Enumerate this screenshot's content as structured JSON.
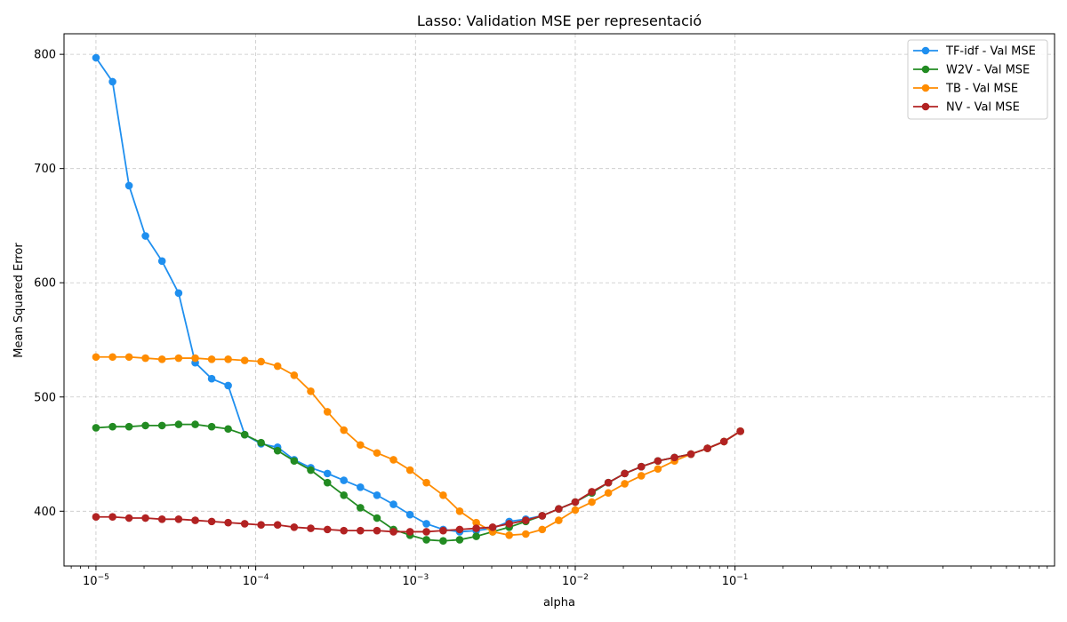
{
  "chart_data": {
    "type": "line",
    "title": "Lasso: Validation MSE per representació",
    "xlabel": "alpha",
    "ylabel": "Mean Squared Error",
    "xscale": "log",
    "xlim_exp": [
      -5.2,
      1.0
    ],
    "xlim": [
      6.31e-06,
      0.119
    ],
    "ylim": [
      352,
      818
    ],
    "yticks": [
      400,
      500,
      600,
      700,
      800
    ],
    "xticks": [
      {
        "value": 1e-05,
        "label_base": "10",
        "label_exp": "−5"
      },
      {
        "value": 0.0001,
        "label_base": "10",
        "label_exp": "−4"
      },
      {
        "value": 0.001,
        "label_base": "10",
        "label_exp": "−3"
      },
      {
        "value": 0.01,
        "label_base": "10",
        "label_exp": "−2"
      },
      {
        "value": 0.1,
        "label_base": "10",
        "label_exp": "−1"
      }
    ],
    "grid": true,
    "legend_position": "top-right",
    "x": [
      1e-05,
      1.27e-05,
      1.61e-05,
      2.04e-05,
      2.59e-05,
      3.29e-05,
      4.18e-05,
      5.3e-05,
      6.72e-05,
      8.53e-05,
      0.000108,
      0.000137,
      0.000174,
      0.000221,
      0.000281,
      0.000356,
      0.000452,
      0.000574,
      0.000728,
      0.000924,
      0.00117,
      0.00149,
      0.00189,
      0.0024,
      0.00304,
      0.00386,
      0.0049,
      0.00621,
      0.00788,
      0.01,
      0.0127,
      0.0161,
      0.0204,
      0.0259,
      0.0329,
      0.0418,
      0.053,
      0.0672,
      0.0853,
      0.108
    ],
    "series": [
      {
        "name": "TF-idf - Val MSE",
        "color": "#1f8fef",
        "values": [
          797,
          776,
          685,
          641,
          619,
          591,
          530,
          516,
          510,
          467,
          459,
          456,
          445,
          438,
          433,
          427,
          421,
          414,
          406,
          397,
          389,
          384,
          382,
          383,
          385,
          391,
          393,
          396,
          402,
          408,
          416,
          425,
          433,
          439,
          444,
          447,
          450,
          455,
          461,
          470
        ]
      },
      {
        "name": "W2V - Val MSE",
        "color": "#228b22",
        "values": [
          473,
          474,
          474,
          475,
          475,
          476,
          476,
          474,
          472,
          467,
          460,
          453,
          444,
          436,
          425,
          414,
          403,
          394,
          384,
          379,
          375,
          374,
          375,
          378,
          382,
          386,
          391,
          396,
          402,
          408,
          416,
          425,
          433,
          439,
          444,
          447,
          450,
          455,
          461,
          470
        ]
      },
      {
        "name": "TB - Val MSE",
        "color": "#ff8c00",
        "values": [
          535,
          535,
          535,
          534,
          533,
          534,
          534,
          533,
          533,
          532,
          531,
          527,
          519,
          505,
          487,
          471,
          458,
          451,
          445,
          436,
          425,
          414,
          400,
          390,
          382,
          379,
          380,
          384,
          392,
          401,
          408,
          416,
          424,
          431,
          437,
          444,
          450,
          455,
          461,
          470
        ]
      },
      {
        "name": "NV - Val MSE",
        "color": "#b22222",
        "values": [
          395,
          395,
          394,
          394,
          393,
          393,
          392,
          391,
          390,
          389,
          388,
          388,
          386,
          385,
          384,
          383,
          383,
          383,
          382,
          382,
          382,
          383,
          384,
          385,
          386,
          389,
          392,
          396,
          402,
          408,
          417,
          425,
          433,
          439,
          444,
          447,
          450,
          455,
          461,
          470
        ]
      }
    ]
  }
}
